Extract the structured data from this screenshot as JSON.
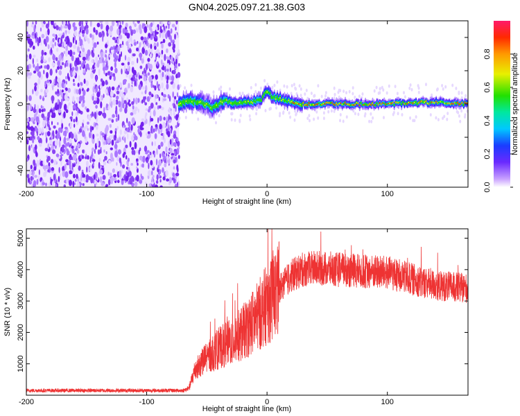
{
  "title": "GN04.2025.097.21.38.G03",
  "chart_data": [
    {
      "type": "heatmap",
      "name": "spectrogram",
      "xlabel": "Height of straight line (km)",
      "ylabel": "Frequency (Hz)",
      "xlim": [
        -200,
        167
      ],
      "ylim": [
        -50,
        50
      ],
      "xticks": [
        "-200",
        "-100",
        "0",
        "100"
      ],
      "yticks": [
        "40",
        "20",
        "0",
        "-20",
        "-40"
      ],
      "xtick_values": [
        -200,
        -100,
        0,
        100
      ],
      "ytick_values": [
        40,
        20,
        0,
        -20,
        -40
      ],
      "colorbar": {
        "label": "Normalized spectral amplitude",
        "range": [
          0,
          1
        ],
        "ticks": [
          "0.0",
          "0.2",
          "0.4",
          "0.6",
          "0.8"
        ],
        "tick_values": [
          0.0,
          0.2,
          0.4,
          0.6,
          0.8
        ]
      },
      "noise_region_x": [
        -200,
        -73
      ],
      "signal_track": {
        "x": [
          -73,
          -65,
          -55,
          -45,
          -35,
          -25,
          -15,
          -5,
          0,
          5,
          15,
          30,
          60,
          100,
          130,
          167
        ],
        "freq": [
          0,
          2,
          1,
          -2,
          2,
          0,
          1,
          2,
          8,
          4,
          2,
          0,
          0,
          0,
          1,
          0
        ]
      }
    },
    {
      "type": "line",
      "name": "snr",
      "xlabel": "Height of straight line (km)",
      "ylabel": "SNR (10 * v/v)",
      "xlim": [
        -200,
        167
      ],
      "ylim": [
        0,
        5300
      ],
      "xticks": [
        "-200",
        "-100",
        "0",
        "100"
      ],
      "yticks": [
        "5000",
        "4000",
        "3000",
        "2000",
        "1000"
      ],
      "xtick_values": [
        -200,
        -100,
        0,
        100
      ],
      "ytick_values": [
        5000,
        4000,
        3000,
        2000,
        1000
      ],
      "color": "#ee3333",
      "envelope": {
        "x": [
          -200,
          -70,
          -65,
          -60,
          -50,
          -40,
          -30,
          -20,
          -10,
          0,
          10,
          20,
          30,
          40,
          60,
          80,
          100,
          120,
          140,
          167
        ],
        "y": [
          150,
          150,
          200,
          800,
          1200,
          1500,
          1700,
          2000,
          2400,
          2900,
          3400,
          3800,
          4000,
          4050,
          4000,
          3950,
          3900,
          3700,
          3500,
          3400
        ]
      }
    }
  ]
}
